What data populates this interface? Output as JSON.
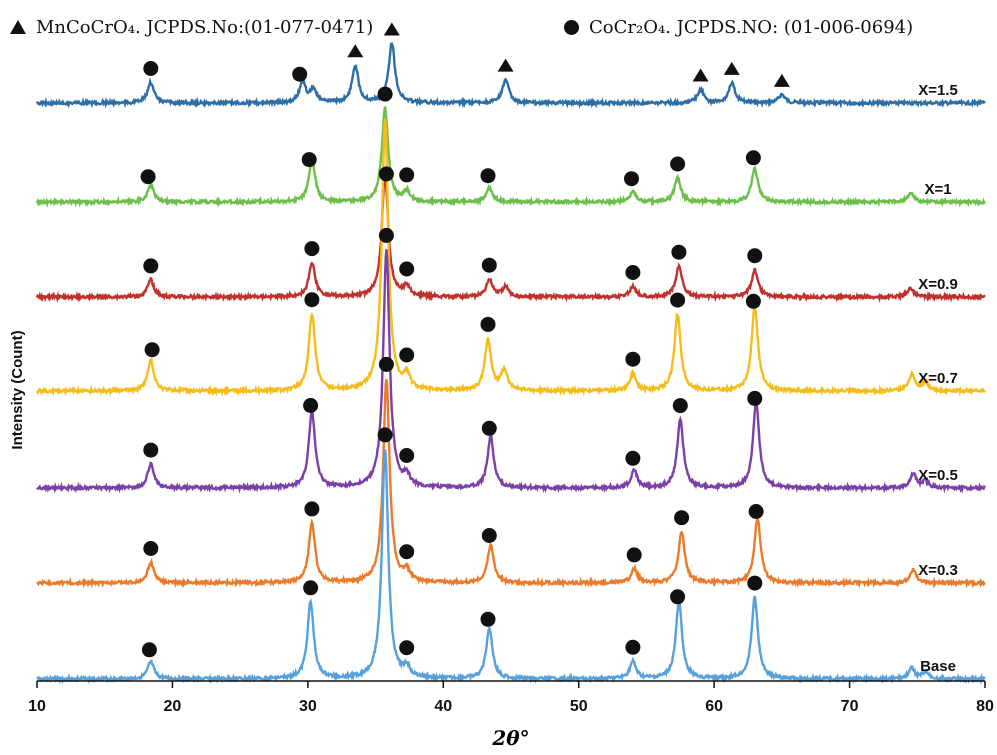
{
  "chart_data": {
    "type": "line",
    "xlabel": "2θ°",
    "ylabel": "Intensity (Count)",
    "xlim": [
      10,
      80
    ],
    "xticks": [
      10,
      20,
      30,
      40,
      50,
      60,
      70,
      80
    ],
    "grid": false,
    "legend_position": "top",
    "legend": [
      {
        "marker": "triangle",
        "phase": "MnCoCrO4",
        "text": "MnCoCrO₄. JCPDS.No:(01-077-0471)"
      },
      {
        "marker": "circle",
        "phase": "CoCr2O4",
        "text": "CoCr₂O₄. JCPDS.NO: (01-006-0694)"
      }
    ],
    "series": [
      {
        "name": "X=1.5",
        "color": "#2e6ea6",
        "peaks": [
          [
            18.4,
            0.12
          ],
          [
            29.6,
            0.12
          ],
          [
            30.4,
            0.08
          ],
          [
            33.5,
            0.22
          ],
          [
            36.2,
            0.35
          ],
          [
            44.6,
            0.14
          ],
          [
            59.0,
            0.08
          ],
          [
            61.3,
            0.12
          ],
          [
            65.0,
            0.05
          ]
        ],
        "markers": [
          {
            "type": "circle",
            "x": 18.4
          },
          {
            "type": "circle",
            "x": 29.4
          },
          {
            "type": "triangle",
            "x": 33.5
          },
          {
            "type": "triangle",
            "x": 36.2
          },
          {
            "type": "triangle",
            "x": 44.6
          },
          {
            "type": "triangle",
            "x": 59.0
          },
          {
            "type": "triangle",
            "x": 61.3
          },
          {
            "type": "triangle",
            "x": 65.0
          }
        ]
      },
      {
        "name": "X=1",
        "color": "#6cc04a",
        "peaks": [
          [
            18.4,
            0.1
          ],
          [
            30.3,
            0.25
          ],
          [
            35.7,
            0.55
          ],
          [
            37.3,
            0.06
          ],
          [
            43.4,
            0.08
          ],
          [
            54.0,
            0.06
          ],
          [
            57.3,
            0.14
          ],
          [
            63.0,
            0.2
          ],
          [
            74.5,
            0.05
          ]
        ],
        "markers": [
          {
            "type": "circle",
            "x": 18.2
          },
          {
            "type": "circle",
            "x": 30.1
          },
          {
            "type": "circle",
            "x": 35.7
          },
          {
            "type": "circle",
            "x": 37.3
          },
          {
            "type": "circle",
            "x": 43.3
          },
          {
            "type": "circle",
            "x": 53.9
          },
          {
            "type": "circle",
            "x": 57.3
          },
          {
            "type": "circle",
            "x": 62.9
          }
        ]
      },
      {
        "name": "X=0.9",
        "color": "#c0312b",
        "peaks": [
          [
            18.4,
            0.1
          ],
          [
            30.3,
            0.2
          ],
          [
            35.7,
            0.72
          ],
          [
            37.3,
            0.06
          ],
          [
            43.4,
            0.1
          ],
          [
            44.6,
            0.06
          ],
          [
            54.0,
            0.06
          ],
          [
            57.4,
            0.18
          ],
          [
            63.0,
            0.16
          ],
          [
            74.5,
            0.05
          ]
        ],
        "markers": [
          {
            "type": "circle",
            "x": 18.4
          },
          {
            "type": "circle",
            "x": 30.3
          },
          {
            "type": "circle",
            "x": 35.8
          },
          {
            "type": "circle",
            "x": 37.3
          },
          {
            "type": "circle",
            "x": 43.4
          },
          {
            "type": "circle",
            "x": 54.0
          },
          {
            "type": "circle",
            "x": 57.4
          },
          {
            "type": "circle",
            "x": 63.0
          }
        ]
      },
      {
        "name": "X=0.7",
        "color": "#f5bd1a",
        "peaks": [
          [
            18.4,
            0.18
          ],
          [
            30.3,
            0.45
          ],
          [
            35.7,
            1.6
          ],
          [
            37.3,
            0.08
          ],
          [
            43.3,
            0.3
          ],
          [
            44.5,
            0.12
          ],
          [
            54.0,
            0.1
          ],
          [
            57.3,
            0.45
          ],
          [
            63.0,
            0.5
          ],
          [
            74.6,
            0.1
          ],
          [
            75.6,
            0.05
          ]
        ],
        "markers": [
          {
            "type": "circle",
            "x": 18.5
          },
          {
            "type": "circle",
            "x": 30.3
          },
          {
            "type": "circle",
            "x": 37.3
          },
          {
            "type": "circle",
            "x": 43.3
          },
          {
            "type": "circle",
            "x": 54.0
          },
          {
            "type": "circle",
            "x": 57.3
          },
          {
            "type": "circle",
            "x": 62.9
          }
        ]
      },
      {
        "name": "X=0.5",
        "color": "#7b3fa8",
        "peaks": [
          [
            18.4,
            0.14
          ],
          [
            30.3,
            0.45
          ],
          [
            35.8,
            1.4
          ],
          [
            37.3,
            0.06
          ],
          [
            43.5,
            0.3
          ],
          [
            54.1,
            0.1
          ],
          [
            57.5,
            0.4
          ],
          [
            63.1,
            0.5
          ],
          [
            74.7,
            0.08
          ],
          [
            75.6,
            0.04
          ]
        ],
        "markers": [
          {
            "type": "circle",
            "x": 18.4
          },
          {
            "type": "circle",
            "x": 30.2
          },
          {
            "type": "circle",
            "x": 35.8
          },
          {
            "type": "circle",
            "x": 37.3
          },
          {
            "type": "circle",
            "x": 43.4
          },
          {
            "type": "circle",
            "x": 54.0
          },
          {
            "type": "circle",
            "x": 57.5
          },
          {
            "type": "circle",
            "x": 63.0
          }
        ]
      },
      {
        "name": "X=0.3",
        "color": "#ec7a2b",
        "peaks": [
          [
            18.4,
            0.12
          ],
          [
            30.3,
            0.35
          ],
          [
            35.8,
            1.2
          ],
          [
            37.3,
            0.06
          ],
          [
            43.5,
            0.22
          ],
          [
            54.1,
            0.08
          ],
          [
            57.6,
            0.3
          ],
          [
            63.2,
            0.38
          ],
          [
            74.7,
            0.08
          ]
        ],
        "markers": [
          {
            "type": "circle",
            "x": 18.4
          },
          {
            "type": "circle",
            "x": 30.3
          },
          {
            "type": "circle",
            "x": 35.8
          },
          {
            "type": "circle",
            "x": 37.3
          },
          {
            "type": "circle",
            "x": 43.4
          },
          {
            "type": "circle",
            "x": 54.1
          },
          {
            "type": "circle",
            "x": 57.6
          },
          {
            "type": "circle",
            "x": 63.1
          }
        ]
      },
      {
        "name": "Base",
        "color": "#56a0dc",
        "peaks": [
          [
            18.4,
            0.1
          ],
          [
            30.2,
            0.45
          ],
          [
            35.7,
            1.35
          ],
          [
            37.3,
            0.06
          ],
          [
            43.4,
            0.3
          ],
          [
            54.0,
            0.1
          ],
          [
            57.4,
            0.45
          ],
          [
            63.0,
            0.48
          ],
          [
            74.6,
            0.06
          ],
          [
            75.6,
            0.04
          ]
        ],
        "markers": [
          {
            "type": "circle",
            "x": 18.3
          },
          {
            "type": "circle",
            "x": 30.2
          },
          {
            "type": "circle",
            "x": 35.7
          },
          {
            "type": "circle",
            "x": 37.3
          },
          {
            "type": "circle",
            "x": 43.3
          },
          {
            "type": "circle",
            "x": 54.0
          },
          {
            "type": "circle",
            "x": 57.3
          },
          {
            "type": "circle",
            "x": 63.0
          }
        ]
      }
    ]
  }
}
